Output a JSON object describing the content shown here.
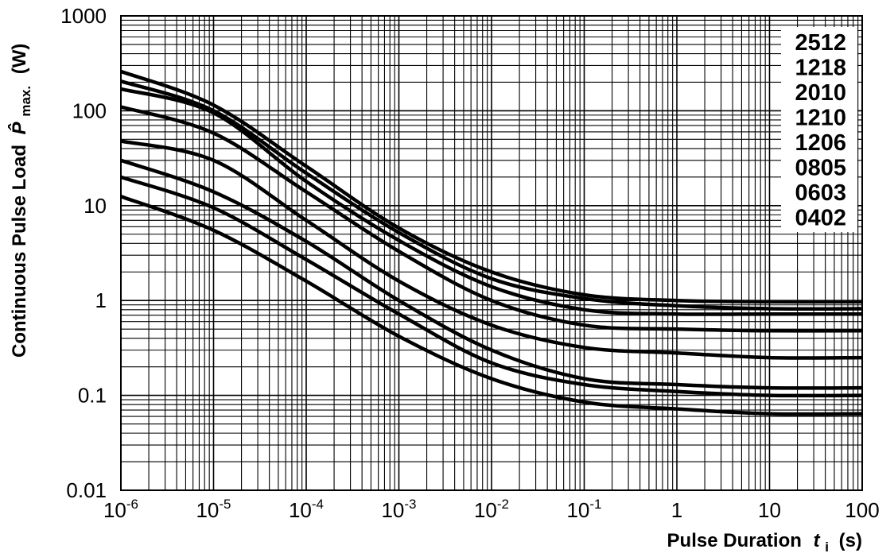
{
  "chart_data": {
    "type": "line",
    "x_scale": "log",
    "y_scale": "log",
    "xlim": [
      1e-06,
      100
    ],
    "ylim": [
      0.01,
      1000
    ],
    "grid": true,
    "legend_position": "top-right",
    "xlabel": "Pulse Duration",
    "xlabel_symbol": "t",
    "xlabel_subscript": "i",
    "xlabel_unit": "(s)",
    "ylabel": "Continuous Pulse Load",
    "ylabel_symbol": "P̂",
    "ylabel_subscript": "max.",
    "ylabel_unit": "(W)",
    "y_ticks": [
      {
        "value": 1000,
        "label": "1000"
      },
      {
        "value": 100,
        "label": "100"
      },
      {
        "value": 10,
        "label": "10"
      },
      {
        "value": 1,
        "label": "1"
      },
      {
        "value": 0.1,
        "label": "0.1"
      },
      {
        "value": 0.01,
        "label": "0.01"
      }
    ],
    "x_ticks": [
      {
        "value": 1e-06,
        "base": "10",
        "exp": "-6"
      },
      {
        "value": 1e-05,
        "base": "10",
        "exp": "-5"
      },
      {
        "value": 0.0001,
        "base": "10",
        "exp": "-4"
      },
      {
        "value": 0.001,
        "base": "10",
        "exp": "-3"
      },
      {
        "value": 0.01,
        "base": "10",
        "exp": "-2"
      },
      {
        "value": 0.1,
        "base": "10",
        "exp": "-1"
      },
      {
        "value": 1,
        "base": "1",
        "exp": ""
      },
      {
        "value": 10,
        "base": "10",
        "exp": ""
      },
      {
        "value": 100,
        "base": "100",
        "exp": ""
      }
    ],
    "legend": [
      "2512",
      "1218",
      "2010",
      "1210",
      "1206",
      "0805",
      "0603",
      "0402"
    ],
    "series": [
      {
        "name": "2512",
        "x": [
          1e-06,
          1e-05,
          0.0001,
          0.001,
          0.01,
          0.1,
          1,
          10,
          100
        ],
        "y": [
          260,
          115,
          26,
          5.8,
          2.0,
          1.15,
          1.0,
          0.97,
          0.97
        ]
      },
      {
        "name": "1218",
        "x": [
          1e-06,
          1e-05,
          0.0001,
          0.001,
          0.01,
          0.1,
          1,
          10,
          100
        ],
        "y": [
          205,
          100,
          22,
          5.2,
          1.7,
          1.05,
          0.88,
          0.82,
          0.82
        ]
      },
      {
        "name": "2010",
        "x": [
          1e-06,
          1e-05,
          0.0001,
          0.001,
          0.01,
          0.1,
          1,
          10,
          100
        ],
        "y": [
          170,
          95,
          18,
          4.3,
          1.4,
          0.8,
          0.72,
          0.72,
          0.72
        ]
      },
      {
        "name": "1210",
        "x": [
          1e-06,
          1e-05,
          0.0001,
          0.001,
          0.01,
          0.1,
          1,
          10,
          100
        ],
        "y": [
          110,
          58,
          14,
          3.3,
          1.0,
          0.55,
          0.5,
          0.48,
          0.48
        ]
      },
      {
        "name": "1206",
        "x": [
          1e-06,
          1e-05,
          0.0001,
          0.001,
          0.01,
          0.1,
          1,
          10,
          100
        ],
        "y": [
          48,
          30,
          7.0,
          1.6,
          0.55,
          0.32,
          0.28,
          0.25,
          0.25
        ]
      },
      {
        "name": "0805",
        "x": [
          1e-06,
          1e-05,
          0.0001,
          0.001,
          0.01,
          0.1,
          1,
          10,
          100
        ],
        "y": [
          30,
          14,
          4.2,
          1.0,
          0.3,
          0.15,
          0.13,
          0.12,
          0.12
        ]
      },
      {
        "name": "0603",
        "x": [
          1e-06,
          1e-05,
          0.0001,
          0.001,
          0.01,
          0.1,
          1,
          10,
          100
        ],
        "y": [
          20,
          9.5,
          2.7,
          0.72,
          0.22,
          0.13,
          0.11,
          0.1,
          0.1
        ]
      },
      {
        "name": "0402",
        "x": [
          1e-06,
          1e-05,
          0.0001,
          0.001,
          0.01,
          0.1,
          1,
          10,
          100
        ],
        "y": [
          12.5,
          5.5,
          1.6,
          0.42,
          0.15,
          0.085,
          0.072,
          0.064,
          0.064
        ]
      }
    ]
  }
}
